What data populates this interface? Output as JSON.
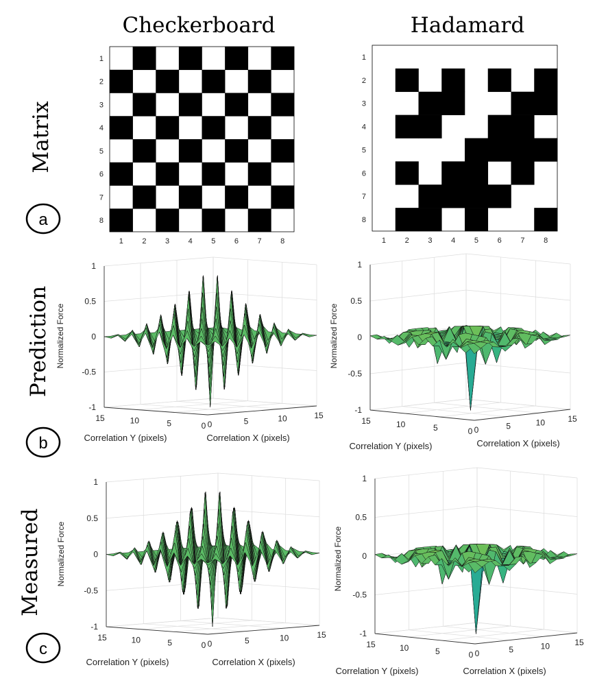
{
  "column_titles": [
    "Checkerboard",
    "Hadamard"
  ],
  "row_titles": [
    "Matrix",
    "Prediction",
    "Measured"
  ],
  "panel_letters": [
    "a",
    "b",
    "c"
  ],
  "chart_data": [
    {
      "panel": "a-left",
      "type": "heatmap",
      "title": "Checkerboard",
      "x_ticks": [
        "1",
        "2",
        "3",
        "4",
        "5",
        "6",
        "7",
        "8"
      ],
      "y_ticks": [
        "1",
        "2",
        "3",
        "4",
        "5",
        "6",
        "7",
        "8"
      ],
      "colors": {
        "1": "#000000",
        "0": "#ffffff"
      },
      "values": [
        [
          0,
          1,
          0,
          1,
          0,
          1,
          0,
          1
        ],
        [
          1,
          0,
          1,
          0,
          1,
          0,
          1,
          0
        ],
        [
          0,
          1,
          0,
          1,
          0,
          1,
          0,
          1
        ],
        [
          1,
          0,
          1,
          0,
          1,
          0,
          1,
          0
        ],
        [
          0,
          1,
          0,
          1,
          0,
          1,
          0,
          1
        ],
        [
          1,
          0,
          1,
          0,
          1,
          0,
          1,
          0
        ],
        [
          0,
          1,
          0,
          1,
          0,
          1,
          0,
          1
        ],
        [
          1,
          0,
          1,
          0,
          1,
          0,
          1,
          0
        ]
      ]
    },
    {
      "panel": "a-right",
      "type": "heatmap",
      "title": "Hadamard",
      "x_ticks": [
        "1",
        "2",
        "3",
        "4",
        "5",
        "6",
        "7",
        "8"
      ],
      "y_ticks": [
        "1",
        "2",
        "3",
        "4",
        "5",
        "6",
        "7",
        "8"
      ],
      "colors": {
        "1": "#000000",
        "0": "#ffffff"
      },
      "values": [
        [
          0,
          0,
          0,
          0,
          0,
          0,
          0,
          0
        ],
        [
          0,
          1,
          0,
          1,
          0,
          1,
          0,
          1
        ],
        [
          0,
          0,
          1,
          1,
          0,
          0,
          1,
          1
        ],
        [
          0,
          1,
          1,
          0,
          0,
          1,
          1,
          0
        ],
        [
          0,
          0,
          0,
          0,
          1,
          1,
          1,
          1
        ],
        [
          0,
          1,
          0,
          1,
          1,
          0,
          1,
          0
        ],
        [
          0,
          0,
          1,
          1,
          1,
          1,
          0,
          0
        ],
        [
          0,
          1,
          1,
          0,
          1,
          0,
          0,
          1
        ]
      ]
    },
    {
      "panel": "b-left",
      "type": "surface",
      "pattern": "checkerboard",
      "zlabel": "Normalized Force",
      "xlabel": "Correlation X (pixels)",
      "ylabel": "Correlation Y (pixels)",
      "z_ticks": [
        "1",
        "0.5",
        "0",
        "-0.5",
        "-1"
      ],
      "x_ticks": [
        "0",
        "5",
        "10",
        "15"
      ],
      "y_ticks": [
        "15",
        "10",
        "5",
        "0"
      ],
      "zlim": [
        -1,
        1
      ],
      "xlim": [
        0,
        15
      ],
      "ylim": [
        0,
        15
      ],
      "peak": {
        "x": 7,
        "y": 7,
        "z": -1
      },
      "colormap": [
        "#3d2a96",
        "#2f8fc7",
        "#27b08c",
        "#8ec640",
        "#f4b73a",
        "#f1e326"
      ]
    },
    {
      "panel": "b-right",
      "type": "surface",
      "pattern": "hadamard",
      "zlabel": "Normalized Force",
      "xlabel": "Correlation X (pixels)",
      "ylabel": "Correlation Y (pixels)",
      "z_ticks": [
        "1",
        "0.5",
        "0",
        "-0.5",
        "-1"
      ],
      "x_ticks": [
        "0",
        "5",
        "10",
        "15"
      ],
      "y_ticks": [
        "15",
        "10",
        "5",
        "0"
      ],
      "zlim": [
        -1,
        1
      ],
      "xlim": [
        0,
        15
      ],
      "ylim": [
        0,
        15
      ],
      "peak": {
        "x": 7,
        "y": 7,
        "z": -1
      },
      "colormap": [
        "#3d2a96",
        "#2f8fc7",
        "#27b08c",
        "#8ec640",
        "#f4b73a",
        "#f1e326"
      ]
    },
    {
      "panel": "c-left",
      "type": "surface",
      "pattern": "checkerboard",
      "zlabel": "Normalized Force",
      "xlabel": "Correlation X (pixels)",
      "ylabel": "Correlation Y (pixels)",
      "z_ticks": [
        "1",
        "0.5",
        "0",
        "-0.5",
        "-1"
      ],
      "x_ticks": [
        "0",
        "5",
        "10",
        "15"
      ],
      "y_ticks": [
        "15",
        "10",
        "5",
        "0"
      ],
      "zlim": [
        -1,
        1
      ],
      "xlim": [
        0,
        15
      ],
      "ylim": [
        0,
        15
      ],
      "peak": {
        "x": 7,
        "y": 7,
        "z": -1
      },
      "colormap": [
        "#3d2a96",
        "#2f8fc7",
        "#27b08c",
        "#8ec640",
        "#f4b73a",
        "#f1e326"
      ]
    },
    {
      "panel": "c-right",
      "type": "surface",
      "pattern": "hadamard",
      "zlabel": "Normalized Force",
      "xlabel": "Correlation X (pixels)",
      "ylabel": "Correlation Y (pixels)",
      "z_ticks": [
        "1",
        "0.5",
        "0",
        "-0.5",
        "-1"
      ],
      "x_ticks": [
        "0",
        "5",
        "10",
        "15"
      ],
      "y_ticks": [
        "15",
        "10",
        "5",
        "0"
      ],
      "zlim": [
        -1,
        1
      ],
      "xlim": [
        0,
        15
      ],
      "ylim": [
        0,
        15
      ],
      "peak": {
        "x": 7,
        "y": 7,
        "z": -1
      },
      "colormap": [
        "#3d2a96",
        "#2f8fc7",
        "#27b08c",
        "#8ec640",
        "#f4b73a",
        "#f1e326"
      ]
    }
  ]
}
